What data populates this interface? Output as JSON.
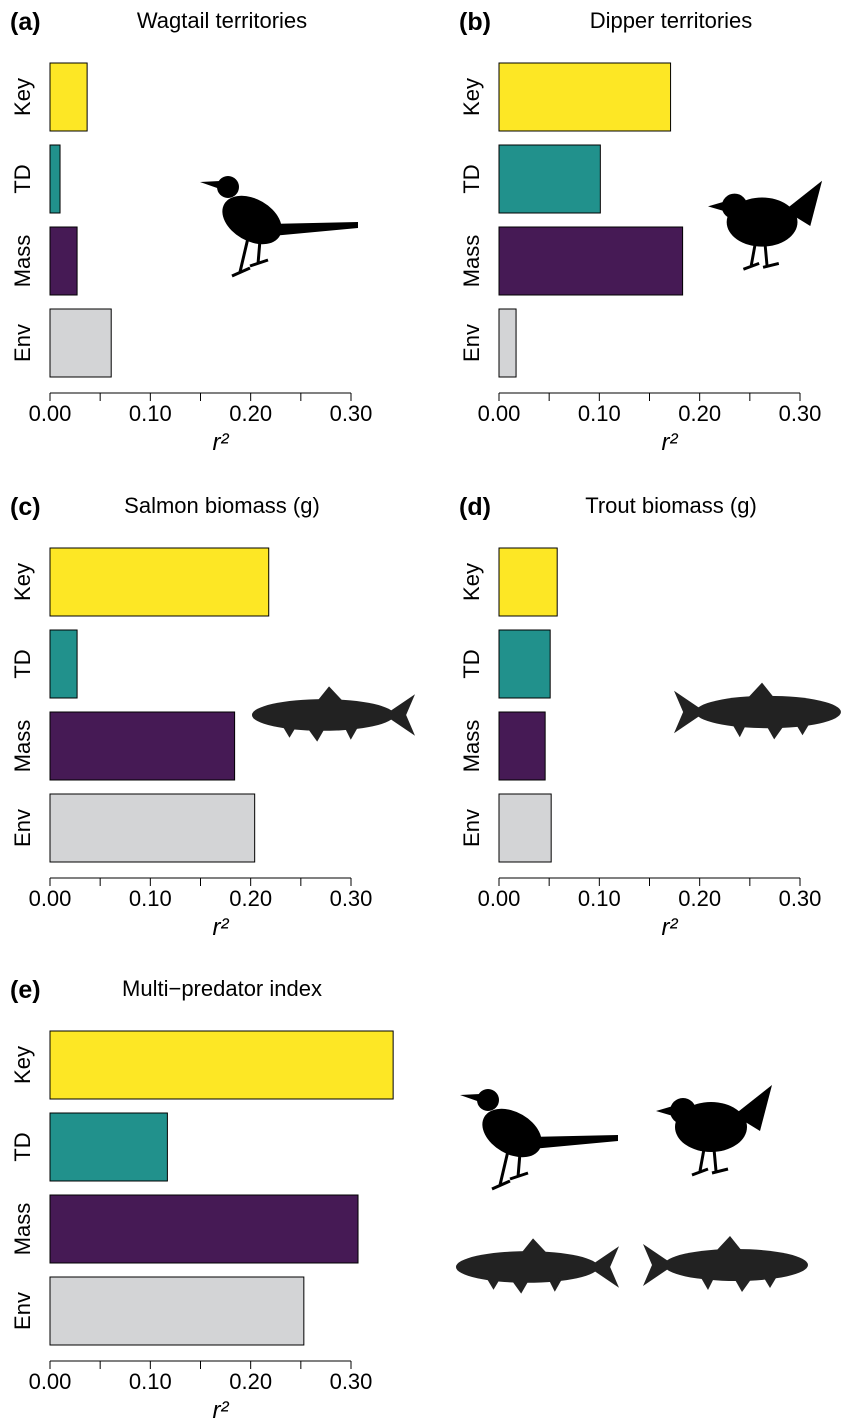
{
  "chart_data": [
    {
      "type": "bar",
      "orientation": "horizontal",
      "panel": "(a)",
      "title": "Wagtail territories",
      "categories": [
        "Key",
        "TD",
        "Mass",
        "Env"
      ],
      "values": [
        0.037,
        0.01,
        0.027,
        0.061
      ],
      "colors": [
        "#fde725",
        "#21918c",
        "#461a55",
        "#d3d4d6"
      ],
      "xlabel": "r²",
      "xlim": [
        0,
        0.3
      ],
      "xticks": [
        {
          "value": 0,
          "label": "0.00"
        },
        {
          "value": 0.1,
          "label": "0.10"
        },
        {
          "value": 0.2,
          "label": "0.20"
        },
        {
          "value": 0.3,
          "label": "0.30"
        }
      ],
      "xminorticks": [
        0.05,
        0.15,
        0.25
      ]
    },
    {
      "type": "bar",
      "orientation": "horizontal",
      "panel": "(b)",
      "title": "Dipper territories",
      "categories": [
        "Key",
        "TD",
        "Mass",
        "Env"
      ],
      "values": [
        0.171,
        0.101,
        0.183,
        0.017
      ],
      "colors": [
        "#fde725",
        "#21918c",
        "#461a55",
        "#d3d4d6"
      ],
      "xlabel": "r²",
      "xlim": [
        0,
        0.3
      ],
      "xticks": [
        {
          "value": 0,
          "label": "0.00"
        },
        {
          "value": 0.1,
          "label": "0.10"
        },
        {
          "value": 0.2,
          "label": "0.20"
        },
        {
          "value": 0.3,
          "label": "0.30"
        }
      ],
      "xminorticks": [
        0.05,
        0.15,
        0.25
      ]
    },
    {
      "type": "bar",
      "orientation": "horizontal",
      "panel": "(c)",
      "title": "Salmon biomass (g)",
      "categories": [
        "Key",
        "TD",
        "Mass",
        "Env"
      ],
      "values": [
        0.218,
        0.027,
        0.184,
        0.204
      ],
      "colors": [
        "#fde725",
        "#21918c",
        "#461a55",
        "#d3d4d6"
      ],
      "xlabel": "r²",
      "xlim": [
        0,
        0.3
      ],
      "xticks": [
        {
          "value": 0,
          "label": "0.00"
        },
        {
          "value": 0.1,
          "label": "0.10"
        },
        {
          "value": 0.2,
          "label": "0.20"
        },
        {
          "value": 0.3,
          "label": "0.30"
        }
      ],
      "xminorticks": [
        0.05,
        0.15,
        0.25
      ]
    },
    {
      "type": "bar",
      "orientation": "horizontal",
      "panel": "(d)",
      "title": "Trout biomass (g)",
      "categories": [
        "Key",
        "TD",
        "Mass",
        "Env"
      ],
      "values": [
        0.058,
        0.051,
        0.046,
        0.052
      ],
      "colors": [
        "#fde725",
        "#21918c",
        "#461a55",
        "#d3d4d6"
      ],
      "xlabel": "r²",
      "xlim": [
        0,
        0.3
      ],
      "xticks": [
        {
          "value": 0,
          "label": "0.00"
        },
        {
          "value": 0.1,
          "label": "0.10"
        },
        {
          "value": 0.2,
          "label": "0.20"
        },
        {
          "value": 0.3,
          "label": "0.30"
        }
      ],
      "xminorticks": [
        0.05,
        0.15,
        0.25
      ]
    },
    {
      "type": "bar",
      "orientation": "horizontal",
      "panel": "(e)",
      "title": "Multi−predator index",
      "categories": [
        "Key",
        "TD",
        "Mass",
        "Env"
      ],
      "values": [
        0.342,
        0.117,
        0.307,
        0.253
      ],
      "colors": [
        "#fde725",
        "#21918c",
        "#461a55",
        "#d3d4d6"
      ],
      "xlabel": "r²",
      "xlim": [
        0,
        0.3
      ],
      "xticks": [
        {
          "value": 0,
          "label": "0.00"
        },
        {
          "value": 0.1,
          "label": "0.10"
        },
        {
          "value": 0.2,
          "label": "0.20"
        },
        {
          "value": 0.3,
          "label": "0.30"
        }
      ],
      "xminorticks": [
        0.05,
        0.15,
        0.25
      ]
    }
  ]
}
